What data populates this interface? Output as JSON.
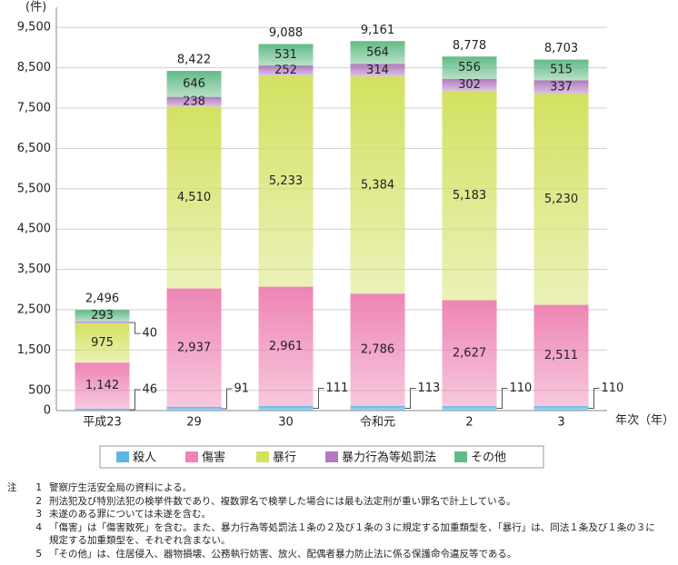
{
  "chart_data": {
    "type": "stacked_bar",
    "y_unit": "(件)",
    "x_label": "年次（年）",
    "categories": [
      "平成23",
      "29",
      "30",
      "令和元",
      "2",
      "3"
    ],
    "series": [
      {
        "name": "殺人",
        "color": "#5fb6e4",
        "values": [
          46,
          91,
          111,
          113,
          110,
          110
        ]
      },
      {
        "name": "傷害",
        "color": "#ee85b4",
        "values": [
          1142,
          2937,
          2961,
          2786,
          2627,
          2511
        ],
        "value_labels": [
          "1,142",
          "2,937",
          "2,961",
          "2,786",
          "2,627",
          "2,511"
        ]
      },
      {
        "name": "暴行",
        "color": "#d3e161",
        "values": [
          975,
          4510,
          5233,
          5384,
          5183,
          5230
        ],
        "value_labels": [
          "975",
          "4,510",
          "5,233",
          "5,384",
          "5,183",
          "5,230"
        ]
      },
      {
        "name": "暴力行為等処罰法",
        "color": "#b27abf",
        "values": [
          40,
          238,
          252,
          314,
          302,
          337
        ]
      },
      {
        "name": "その他",
        "color": "#62bb86",
        "values": [
          293,
          646,
          531,
          564,
          556,
          515
        ]
      }
    ],
    "totals": {
      "values": [
        2496,
        8422,
        9088,
        9161,
        8778,
        8703
      ],
      "value_labels": [
        "2,496",
        "8,422",
        "9,088",
        "9,161",
        "8,778",
        "8,703"
      ]
    },
    "ylim": [
      0,
      10000
    ],
    "yticks": [
      0,
      500,
      {
        "value": 1500,
        "label": "1,500"
      },
      {
        "value": 2500,
        "label": "2,500"
      },
      {
        "value": 3500,
        "label": "3,500"
      },
      {
        "value": 4500,
        "label": "4,500"
      },
      {
        "value": 5500,
        "label": "5,500"
      },
      {
        "value": 6500,
        "label": "6,500"
      },
      {
        "value": 7500,
        "label": "7,500"
      },
      {
        "value": 8500,
        "label": "8,500"
      },
      {
        "value": 9500,
        "label": "9,500"
      }
    ],
    "grid": true
  },
  "notes": {
    "label": "注",
    "items": [
      {
        "num": "1",
        "text": "警察庁生活安全局の資料による。"
      },
      {
        "num": "2",
        "text": "刑法犯及び特別法犯の検挙件数であり、複数罪名で検挙した場合には最も法定刑が重い罪名で計上している。"
      },
      {
        "num": "3",
        "text": "未遂のある罪については未遂を含む。"
      },
      {
        "num": "4",
        "text": "「傷害」は「傷害致死」を含む。また、暴力行為等処罰法１条の２及び１条の３に規定する加重類型を、「暴行」は、同法１条及び１条の３に規定する加重類型を、それぞれ含まない。"
      },
      {
        "num": "5",
        "text": "「その他」は、住居侵入、器物損壊、公務執行妨害、放火、配偶者暴力防止法に係る保護命令違反等である。"
      }
    ]
  }
}
